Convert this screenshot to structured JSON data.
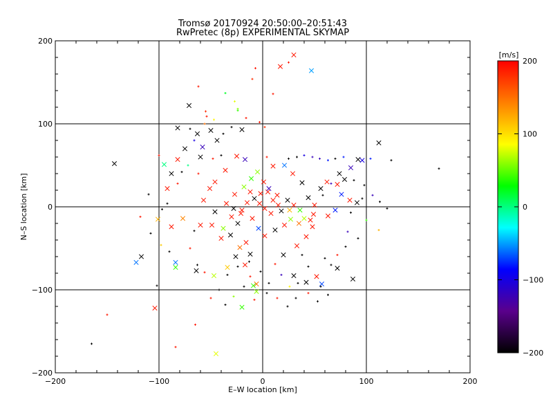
{
  "chart_data": {
    "type": "scatter",
    "title": "Tromsø 20170924 20:50:00–20:51:43",
    "subtitle": "RwPretec (8p) EXPERIMENTAL SKYMAP",
    "xlabel": "E–W location [km]",
    "ylabel": "N–S location [km]",
    "xlim": [
      -200,
      200
    ],
    "ylim": [
      -200,
      200
    ],
    "xticks": [
      "−200",
      "−100",
      "0",
      "100",
      "200"
    ],
    "yticks": [
      "−200",
      "−100",
      "0",
      "100",
      "200"
    ],
    "grid": true,
    "colorbar": {
      "label": "[m/s]",
      "range": [
        -200,
        200
      ],
      "ticks": [
        "200",
        "100",
        "0",
        "−100",
        "−200"
      ],
      "colormap": [
        "#000000",
        "#5a008c",
        "#0000ff",
        "#00ffff",
        "#00ff00",
        "#ffff00",
        "#ff7f00",
        "#ff0000"
      ]
    },
    "marker_symbols": [
      "x",
      "+"
    ],
    "points": [
      [
        -143,
        52,
        -200,
        "x"
      ],
      [
        -165,
        -165,
        -200,
        "+"
      ],
      [
        -150,
        -130,
        190,
        "+"
      ],
      [
        -102,
        -95,
        -200,
        "+"
      ],
      [
        -104,
        -122,
        190,
        "x"
      ],
      [
        -122,
        -67,
        -60,
        "x"
      ],
      [
        -117,
        -60,
        -200,
        "x"
      ],
      [
        -84,
        -169,
        190,
        "+"
      ],
      [
        -45,
        -177,
        80,
        "x"
      ],
      [
        -65,
        -142,
        190,
        "+"
      ],
      [
        170,
        46,
        -200,
        "+"
      ],
      [
        112,
        77,
        -200,
        "x"
      ],
      [
        124,
        56,
        -200,
        "+"
      ],
      [
        104,
        58,
        -80,
        "+"
      ],
      [
        92,
        57,
        -200,
        "x"
      ],
      [
        85,
        47,
        -120,
        "x"
      ],
      [
        87,
        -87,
        -200,
        "x"
      ],
      [
        57,
        -93,
        -70,
        "x"
      ],
      [
        63,
        -106,
        -200,
        "+"
      ],
      [
        53,
        -114,
        -200,
        "+"
      ],
      [
        30,
        183,
        190,
        "x"
      ],
      [
        25,
        174,
        190,
        "+"
      ],
      [
        17,
        169,
        190,
        "x"
      ],
      [
        47,
        164,
        -50,
        "x"
      ],
      [
        -7,
        167,
        190,
        "+"
      ],
      [
        -62,
        145,
        190,
        "+"
      ],
      [
        -71,
        122,
        -200,
        "x"
      ],
      [
        -55,
        115,
        180,
        "+"
      ],
      [
        -27,
        127,
        80,
        "+"
      ],
      [
        -24,
        118,
        60,
        "+"
      ],
      [
        -36,
        137,
        20,
        "+"
      ],
      [
        -20,
        93,
        -200,
        "x"
      ],
      [
        -50,
        92,
        -200,
        "x"
      ],
      [
        -63,
        88,
        -200,
        "x"
      ],
      [
        -75,
        70,
        -200,
        "x"
      ],
      [
        -82,
        57,
        190,
        "x"
      ],
      [
        -88,
        40,
        -200,
        "x"
      ],
      [
        -92,
        22,
        190,
        "x"
      ],
      [
        -97,
        -3,
        -200,
        "+"
      ],
      [
        -101,
        -15,
        120,
        "x"
      ],
      [
        -84,
        -67,
        -60,
        "x"
      ],
      [
        -84,
        -73,
        40,
        "x"
      ],
      [
        -64,
        -77,
        -200,
        "x"
      ],
      [
        -63,
        -70,
        -200,
        "+"
      ],
      [
        -56,
        -79,
        190,
        "+"
      ],
      [
        -47,
        -83,
        70,
        "x"
      ],
      [
        -34,
        -73,
        110,
        "x"
      ],
      [
        -26,
        -60,
        -200,
        "x"
      ],
      [
        -20,
        -121,
        40,
        "x"
      ],
      [
        -6,
        -93,
        150,
        "x"
      ],
      [
        -9,
        -95,
        40,
        "x"
      ],
      [
        -6,
        -102,
        60,
        "x"
      ],
      [
        -17,
        -70,
        190,
        "x"
      ],
      [
        -16,
        -43,
        190,
        "x"
      ],
      [
        -12,
        -57,
        -200,
        "x"
      ],
      [
        -22,
        -49,
        150,
        "x"
      ],
      [
        -31,
        -34,
        -200,
        "x"
      ],
      [
        -40,
        -38,
        190,
        "x"
      ],
      [
        -49,
        -22,
        190,
        "x"
      ],
      [
        -60,
        -22,
        190,
        "x"
      ],
      [
        -66,
        -29,
        -200,
        "+"
      ],
      [
        -77,
        -14,
        140,
        "x"
      ],
      [
        -88,
        -24,
        190,
        "x"
      ],
      [
        -46,
        30,
        190,
        "x"
      ],
      [
        -51,
        22,
        190,
        "x"
      ],
      [
        -57,
        8,
        190,
        "x"
      ],
      [
        -36,
        44,
        190,
        "x"
      ],
      [
        -25,
        61,
        190,
        "x"
      ],
      [
        -17,
        57,
        -120,
        "x"
      ],
      [
        4,
        60,
        190,
        "+"
      ],
      [
        10,
        49,
        190,
        "x"
      ],
      [
        21,
        50,
        -60,
        "x"
      ],
      [
        29,
        40,
        190,
        "x"
      ],
      [
        38,
        29,
        -200,
        "x"
      ],
      [
        44,
        11,
        -200,
        "x"
      ],
      [
        50,
        2,
        190,
        "x"
      ],
      [
        56,
        22,
        -200,
        "x"
      ],
      [
        62,
        30,
        190,
        "x"
      ],
      [
        72,
        27,
        190,
        "x"
      ],
      [
        79,
        33,
        -200,
        "x"
      ],
      [
        76,
        15,
        -80,
        "x"
      ],
      [
        84,
        8,
        190,
        "x"
      ],
      [
        91,
        5,
        -200,
        "x"
      ],
      [
        96,
        10,
        -200,
        "+"
      ],
      [
        85,
        -7,
        -200,
        "+"
      ],
      [
        70,
        -4,
        -80,
        "x"
      ],
      [
        63,
        -11,
        190,
        "x"
      ],
      [
        48,
        -24,
        190,
        "x"
      ],
      [
        42,
        -36,
        190,
        "x"
      ],
      [
        33,
        -47,
        190,
        "x"
      ],
      [
        20,
        -58,
        -200,
        "x"
      ],
      [
        12,
        -69,
        190,
        "+"
      ],
      [
        30,
        -83,
        -200,
        "x"
      ],
      [
        42,
        -91,
        -200,
        "x"
      ],
      [
        52,
        -84,
        190,
        "x"
      ],
      [
        72,
        -74,
        -200,
        "x"
      ],
      [
        46,
        -16,
        190,
        "x"
      ],
      [
        49,
        -9,
        190,
        "x"
      ],
      [
        40,
        -14,
        70,
        "x"
      ],
      [
        35,
        -20,
        150,
        "x"
      ],
      [
        27,
        -15,
        60,
        "x"
      ],
      [
        21,
        -22,
        190,
        "x"
      ],
      [
        12,
        -28,
        -200,
        "x"
      ],
      [
        2,
        -35,
        190,
        "x"
      ],
      [
        -4,
        -26,
        -70,
        "x"
      ],
      [
        -10,
        -14,
        190,
        "x"
      ],
      [
        -21,
        -8,
        190,
        "x"
      ],
      [
        -28,
        -2,
        -200,
        "x"
      ],
      [
        -35,
        4,
        190,
        "x"
      ],
      [
        -27,
        15,
        190,
        "x"
      ],
      [
        -18,
        24,
        60,
        "x"
      ],
      [
        -11,
        34,
        40,
        "x"
      ],
      [
        -5,
        42,
        60,
        "x"
      ],
      [
        1,
        30,
        190,
        "x"
      ],
      [
        5,
        18,
        190,
        "x"
      ],
      [
        10,
        8,
        190,
        "x"
      ],
      [
        15,
        2,
        190,
        "x"
      ],
      [
        18,
        -5,
        -200,
        "x"
      ],
      [
        8,
        -8,
        190,
        "x"
      ],
      [
        2,
        -2,
        190,
        "x"
      ],
      [
        -3,
        4,
        190,
        "x"
      ],
      [
        -8,
        10,
        -200,
        "x"
      ],
      [
        -15,
        5,
        190,
        "x"
      ],
      [
        -20,
        -4,
        190,
        "x"
      ],
      [
        24,
        8,
        -200,
        "x"
      ],
      [
        30,
        2,
        190,
        "x"
      ],
      [
        36,
        -4,
        40,
        "x"
      ],
      [
        26,
        -4,
        120,
        "x"
      ],
      [
        14,
        14,
        190,
        "x"
      ],
      [
        6,
        22,
        -120,
        "x"
      ],
      [
        -2,
        16,
        190,
        "x"
      ],
      [
        -12,
        18,
        190,
        "x"
      ],
      [
        -24,
        -20,
        -200,
        "x"
      ],
      [
        -30,
        -12,
        190,
        "x"
      ],
      [
        -38,
        -26,
        60,
        "x"
      ],
      [
        -46,
        -6,
        -200,
        "x"
      ],
      [
        -60,
        60,
        -200,
        "x"
      ],
      [
        -58,
        72,
        -120,
        "x"
      ],
      [
        -66,
        80,
        -100,
        "+"
      ],
      [
        -70,
        94,
        -200,
        "+"
      ],
      [
        -44,
        80,
        -200,
        "x"
      ],
      [
        -38,
        88,
        -200,
        "+"
      ],
      [
        -30,
        96,
        -200,
        "+"
      ],
      [
        -48,
        58,
        190,
        "+"
      ],
      [
        -40,
        62,
        -200,
        "+"
      ],
      [
        -72,
        50,
        0,
        "+"
      ],
      [
        -78,
        42,
        -200,
        "+"
      ],
      [
        -62,
        40,
        190,
        "+"
      ],
      [
        25,
        58,
        -200,
        "+"
      ],
      [
        33,
        60,
        -200,
        "+"
      ],
      [
        40,
        62,
        -100,
        "+"
      ],
      [
        48,
        60,
        -120,
        "+"
      ],
      [
        55,
        58,
        -120,
        "+"
      ],
      [
        63,
        56,
        -80,
        "+"
      ],
      [
        70,
        58,
        -200,
        "+"
      ],
      [
        78,
        60,
        -80,
        "+"
      ],
      [
        96,
        56,
        -100,
        "x"
      ],
      [
        74,
        40,
        -200,
        "x"
      ],
      [
        66,
        28,
        -120,
        "+"
      ],
      [
        58,
        14,
        -200,
        "+"
      ],
      [
        -2,
        -78,
        -200,
        "+"
      ],
      [
        6,
        -92,
        -200,
        "+"
      ],
      [
        -13,
        -66,
        -200,
        "+"
      ],
      [
        -24,
        -72,
        -200,
        "+"
      ],
      [
        -34,
        -82,
        -200,
        "+"
      ],
      [
        -12,
        -84,
        190,
        "+"
      ],
      [
        18,
        -82,
        -120,
        "+"
      ],
      [
        26,
        -96,
        90,
        "+"
      ],
      [
        34,
        -92,
        -200,
        "+"
      ],
      [
        44,
        -72,
        -200,
        "+"
      ],
      [
        60,
        -62,
        -200,
        "+"
      ],
      [
        38,
        -58,
        -200,
        "+"
      ],
      [
        -98,
        -46,
        110,
        "+"
      ],
      [
        -108,
        -32,
        -200,
        "+"
      ],
      [
        -90,
        -54,
        -200,
        "+"
      ],
      [
        -70,
        -50,
        190,
        "+"
      ],
      [
        -110,
        15,
        -200,
        "+"
      ],
      [
        -92,
        4,
        -200,
        "+"
      ],
      [
        -82,
        28,
        190,
        "+"
      ],
      [
        -118,
        -12,
        190,
        "+"
      ],
      [
        -95,
        51,
        0,
        "x"
      ],
      [
        -100,
        62,
        190,
        "+"
      ],
      [
        -82,
        95,
        -200,
        "x"
      ],
      [
        -56,
        100,
        150,
        "+"
      ],
      [
        -10,
        154,
        180,
        "+"
      ],
      [
        10,
        136,
        190,
        "+"
      ],
      [
        -3,
        102,
        190,
        "+"
      ],
      [
        2,
        96,
        180,
        "+"
      ],
      [
        -54,
        109,
        190,
        "+"
      ],
      [
        -47,
        105,
        90,
        "+"
      ],
      [
        -24,
        116,
        40,
        "+"
      ],
      [
        -16,
        107,
        190,
        "+"
      ],
      [
        88,
        32,
        -200,
        "+"
      ],
      [
        98,
        26,
        -200,
        "+"
      ],
      [
        106,
        14,
        -120,
        "+"
      ],
      [
        113,
        6,
        -200,
        "+"
      ],
      [
        120,
        -2,
        -200,
        "+"
      ],
      [
        100,
        -16,
        40,
        "+"
      ],
      [
        112,
        -28,
        120,
        "+"
      ],
      [
        92,
        -38,
        -200,
        "+"
      ],
      [
        80,
        -48,
        -200,
        "+"
      ],
      [
        72,
        -58,
        190,
        "+"
      ],
      [
        66,
        -70,
        -200,
        "+"
      ],
      [
        82,
        -30,
        -120,
        "+"
      ],
      [
        -42,
        -100,
        -200,
        "+"
      ],
      [
        -50,
        -110,
        190,
        "+"
      ],
      [
        -36,
        -118,
        -200,
        "+"
      ],
      [
        -28,
        -108,
        60,
        "+"
      ],
      [
        -18,
        -96,
        -200,
        "+"
      ],
      [
        -8,
        -112,
        190,
        "+"
      ],
      [
        4,
        -104,
        -200,
        "+"
      ],
      [
        14,
        -110,
        190,
        "+"
      ],
      [
        24,
        -120,
        -200,
        "+"
      ],
      [
        32,
        -110,
        -200,
        "+"
      ],
      [
        44,
        -104,
        190,
        "+"
      ],
      [
        56,
        -96,
        -200,
        "+"
      ]
    ]
  }
}
